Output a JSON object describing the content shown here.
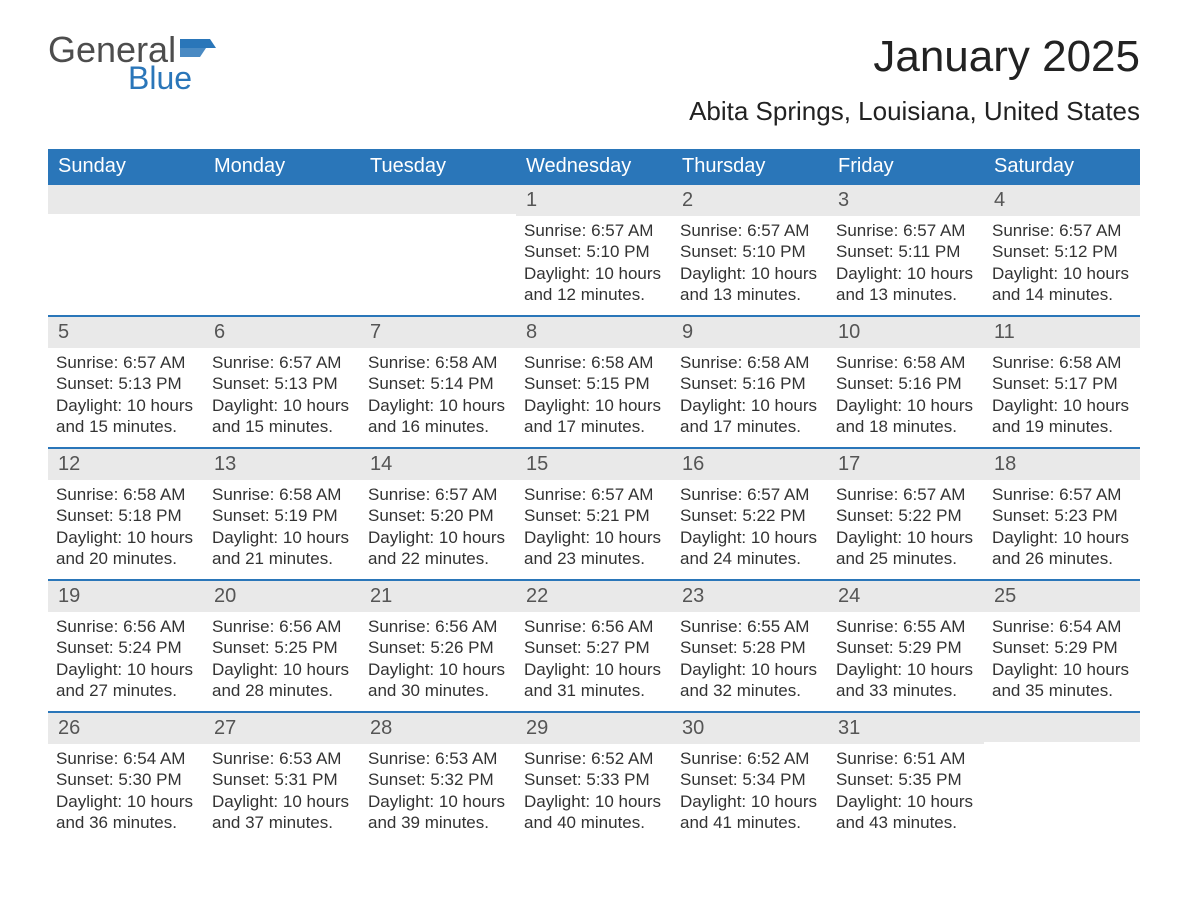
{
  "brand": {
    "word1": "General",
    "word2": "Blue"
  },
  "title": "January 2025",
  "location": "Abita Springs, Louisiana, United States",
  "colors": {
    "header_bg": "#2a76b9",
    "header_text": "#ffffff",
    "daynum_bg": "#e9e9e9",
    "row_divider": "#2a76b9",
    "body_text": "#333333"
  },
  "weekdays": [
    "Sunday",
    "Monday",
    "Tuesday",
    "Wednesday",
    "Thursday",
    "Friday",
    "Saturday"
  ],
  "weeks": [
    [
      {
        "n": "",
        "sunrise": "",
        "sunset": "",
        "daylight": ""
      },
      {
        "n": "",
        "sunrise": "",
        "sunset": "",
        "daylight": ""
      },
      {
        "n": "",
        "sunrise": "",
        "sunset": "",
        "daylight": ""
      },
      {
        "n": "1",
        "sunrise": "Sunrise: 6:57 AM",
        "sunset": "Sunset: 5:10 PM",
        "daylight": "Daylight: 10 hours and 12 minutes."
      },
      {
        "n": "2",
        "sunrise": "Sunrise: 6:57 AM",
        "sunset": "Sunset: 5:10 PM",
        "daylight": "Daylight: 10 hours and 13 minutes."
      },
      {
        "n": "3",
        "sunrise": "Sunrise: 6:57 AM",
        "sunset": "Sunset: 5:11 PM",
        "daylight": "Daylight: 10 hours and 13 minutes."
      },
      {
        "n": "4",
        "sunrise": "Sunrise: 6:57 AM",
        "sunset": "Sunset: 5:12 PM",
        "daylight": "Daylight: 10 hours and 14 minutes."
      }
    ],
    [
      {
        "n": "5",
        "sunrise": "Sunrise: 6:57 AM",
        "sunset": "Sunset: 5:13 PM",
        "daylight": "Daylight: 10 hours and 15 minutes."
      },
      {
        "n": "6",
        "sunrise": "Sunrise: 6:57 AM",
        "sunset": "Sunset: 5:13 PM",
        "daylight": "Daylight: 10 hours and 15 minutes."
      },
      {
        "n": "7",
        "sunrise": "Sunrise: 6:58 AM",
        "sunset": "Sunset: 5:14 PM",
        "daylight": "Daylight: 10 hours and 16 minutes."
      },
      {
        "n": "8",
        "sunrise": "Sunrise: 6:58 AM",
        "sunset": "Sunset: 5:15 PM",
        "daylight": "Daylight: 10 hours and 17 minutes."
      },
      {
        "n": "9",
        "sunrise": "Sunrise: 6:58 AM",
        "sunset": "Sunset: 5:16 PM",
        "daylight": "Daylight: 10 hours and 17 minutes."
      },
      {
        "n": "10",
        "sunrise": "Sunrise: 6:58 AM",
        "sunset": "Sunset: 5:16 PM",
        "daylight": "Daylight: 10 hours and 18 minutes."
      },
      {
        "n": "11",
        "sunrise": "Sunrise: 6:58 AM",
        "sunset": "Sunset: 5:17 PM",
        "daylight": "Daylight: 10 hours and 19 minutes."
      }
    ],
    [
      {
        "n": "12",
        "sunrise": "Sunrise: 6:58 AM",
        "sunset": "Sunset: 5:18 PM",
        "daylight": "Daylight: 10 hours and 20 minutes."
      },
      {
        "n": "13",
        "sunrise": "Sunrise: 6:58 AM",
        "sunset": "Sunset: 5:19 PM",
        "daylight": "Daylight: 10 hours and 21 minutes."
      },
      {
        "n": "14",
        "sunrise": "Sunrise: 6:57 AM",
        "sunset": "Sunset: 5:20 PM",
        "daylight": "Daylight: 10 hours and 22 minutes."
      },
      {
        "n": "15",
        "sunrise": "Sunrise: 6:57 AM",
        "sunset": "Sunset: 5:21 PM",
        "daylight": "Daylight: 10 hours and 23 minutes."
      },
      {
        "n": "16",
        "sunrise": "Sunrise: 6:57 AM",
        "sunset": "Sunset: 5:22 PM",
        "daylight": "Daylight: 10 hours and 24 minutes."
      },
      {
        "n": "17",
        "sunrise": "Sunrise: 6:57 AM",
        "sunset": "Sunset: 5:22 PM",
        "daylight": "Daylight: 10 hours and 25 minutes."
      },
      {
        "n": "18",
        "sunrise": "Sunrise: 6:57 AM",
        "sunset": "Sunset: 5:23 PM",
        "daylight": "Daylight: 10 hours and 26 minutes."
      }
    ],
    [
      {
        "n": "19",
        "sunrise": "Sunrise: 6:56 AM",
        "sunset": "Sunset: 5:24 PM",
        "daylight": "Daylight: 10 hours and 27 minutes."
      },
      {
        "n": "20",
        "sunrise": "Sunrise: 6:56 AM",
        "sunset": "Sunset: 5:25 PM",
        "daylight": "Daylight: 10 hours and 28 minutes."
      },
      {
        "n": "21",
        "sunrise": "Sunrise: 6:56 AM",
        "sunset": "Sunset: 5:26 PM",
        "daylight": "Daylight: 10 hours and 30 minutes."
      },
      {
        "n": "22",
        "sunrise": "Sunrise: 6:56 AM",
        "sunset": "Sunset: 5:27 PM",
        "daylight": "Daylight: 10 hours and 31 minutes."
      },
      {
        "n": "23",
        "sunrise": "Sunrise: 6:55 AM",
        "sunset": "Sunset: 5:28 PM",
        "daylight": "Daylight: 10 hours and 32 minutes."
      },
      {
        "n": "24",
        "sunrise": "Sunrise: 6:55 AM",
        "sunset": "Sunset: 5:29 PM",
        "daylight": "Daylight: 10 hours and 33 minutes."
      },
      {
        "n": "25",
        "sunrise": "Sunrise: 6:54 AM",
        "sunset": "Sunset: 5:29 PM",
        "daylight": "Daylight: 10 hours and 35 minutes."
      }
    ],
    [
      {
        "n": "26",
        "sunrise": "Sunrise: 6:54 AM",
        "sunset": "Sunset: 5:30 PM",
        "daylight": "Daylight: 10 hours and 36 minutes."
      },
      {
        "n": "27",
        "sunrise": "Sunrise: 6:53 AM",
        "sunset": "Sunset: 5:31 PM",
        "daylight": "Daylight: 10 hours and 37 minutes."
      },
      {
        "n": "28",
        "sunrise": "Sunrise: 6:53 AM",
        "sunset": "Sunset: 5:32 PM",
        "daylight": "Daylight: 10 hours and 39 minutes."
      },
      {
        "n": "29",
        "sunrise": "Sunrise: 6:52 AM",
        "sunset": "Sunset: 5:33 PM",
        "daylight": "Daylight: 10 hours and 40 minutes."
      },
      {
        "n": "30",
        "sunrise": "Sunrise: 6:52 AM",
        "sunset": "Sunset: 5:34 PM",
        "daylight": "Daylight: 10 hours and 41 minutes."
      },
      {
        "n": "31",
        "sunrise": "Sunrise: 6:51 AM",
        "sunset": "Sunset: 5:35 PM",
        "daylight": "Daylight: 10 hours and 43 minutes."
      },
      {
        "n": "",
        "sunrise": "",
        "sunset": "",
        "daylight": ""
      }
    ]
  ]
}
